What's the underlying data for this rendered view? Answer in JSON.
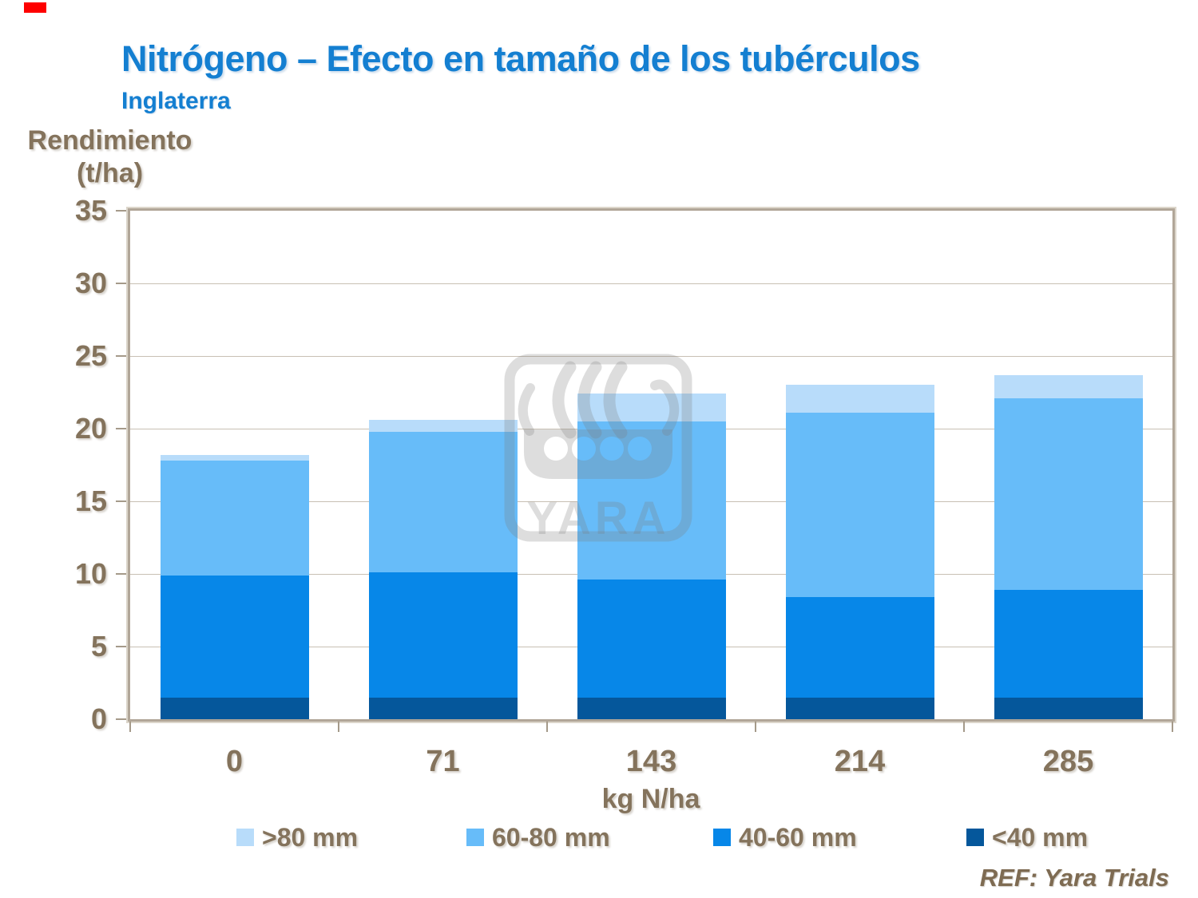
{
  "header": {
    "title": "Nitrógeno – Efecto en tamaño de los tubérculos",
    "subtitle": "Inglaterra",
    "title_color": "#147FD1"
  },
  "footer": {
    "ref": "REF: Yara Trials"
  },
  "watermark": {
    "text": "YARA"
  },
  "corner_marker": {
    "color": "#FE0000"
  },
  "chart_data": {
    "type": "bar",
    "stacked": true,
    "title": "Nitrógeno – Efecto en tamaño de los tubérculos",
    "subtitle": "Inglaterra",
    "ylabel": "Rendimiento (t/ha)",
    "ylabel_lines": [
      "Rendimiento",
      "(t/ha)"
    ],
    "xlabel": "kg N/ha",
    "categories": [
      "0",
      "71",
      "143",
      "214",
      "285"
    ],
    "series": [
      {
        "name": "<40 mm",
        "color": "#05579B",
        "values": [
          1.5,
          1.5,
          1.5,
          1.5,
          1.5
        ]
      },
      {
        "name": "40-60 mm",
        "color": "#0787E8",
        "values": [
          8.4,
          8.6,
          8.1,
          6.9,
          7.4
        ]
      },
      {
        "name": "60-80 mm",
        "color": "#67BCF9",
        "values": [
          7.9,
          9.7,
          10.9,
          12.7,
          13.2
        ]
      },
      {
        "name": ">80 mm",
        "color": "#B8DCFA",
        "values": [
          0.4,
          0.8,
          1.9,
          1.9,
          1.6
        ]
      }
    ],
    "stack_totals": [
      18.2,
      20.6,
      22.4,
      23.0,
      23.7
    ],
    "legend": [
      ">80 mm",
      "60-80 mm",
      "40-60 mm",
      "<40 mm"
    ],
    "legend_position": "bottom",
    "ylim": [
      0,
      35
    ],
    "yticks": [
      0,
      5,
      10,
      15,
      20,
      25,
      30,
      35
    ],
    "grid": true,
    "axis_text_color": "#84735C",
    "grid_color": "#C8C0B4",
    "frame_color": "#B1A698"
  }
}
